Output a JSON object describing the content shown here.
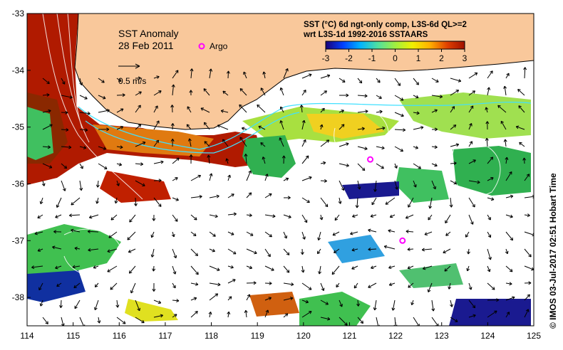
{
  "title": "SST Anomaly",
  "date": "28 Feb 2011",
  "argo_label": "Argo",
  "vector_scale_label": "0.5 m/s",
  "colorbar": {
    "title_line1": "SST (°C) 6d ngt-only comp, L3S-6d QL>=2",
    "title_line2": "wrt L3S-1d 1992-2016 SSTAARS",
    "ticks": [
      "-3",
      "-2",
      "-1",
      "0",
      "1",
      "2",
      "3"
    ],
    "colors": [
      "#1a0078",
      "#0040ff",
      "#00b4ff",
      "#50e0a0",
      "#a0f040",
      "#f0f000",
      "#ffb000",
      "#e04000",
      "#a01000"
    ]
  },
  "x_axis": {
    "ticks": [
      "114",
      "115",
      "116",
      "117",
      "118",
      "119",
      "120",
      "121",
      "122",
      "123",
      "124",
      "125"
    ]
  },
  "y_axis": {
    "ticks": [
      "-33",
      "-34",
      "-35",
      "-36",
      "-37",
      "-38"
    ]
  },
  "credit": "© IMOS 03-Jul-2017 02:51 Hobart Time",
  "argo_floats": [
    {
      "lon": 121.45,
      "lat": -35.57
    },
    {
      "lon": 122.15,
      "lat": -37.0
    }
  ],
  "colors": {
    "land": "#f9c89b",
    "argo": "#ff00ff",
    "contour": "#40e0ff"
  }
}
